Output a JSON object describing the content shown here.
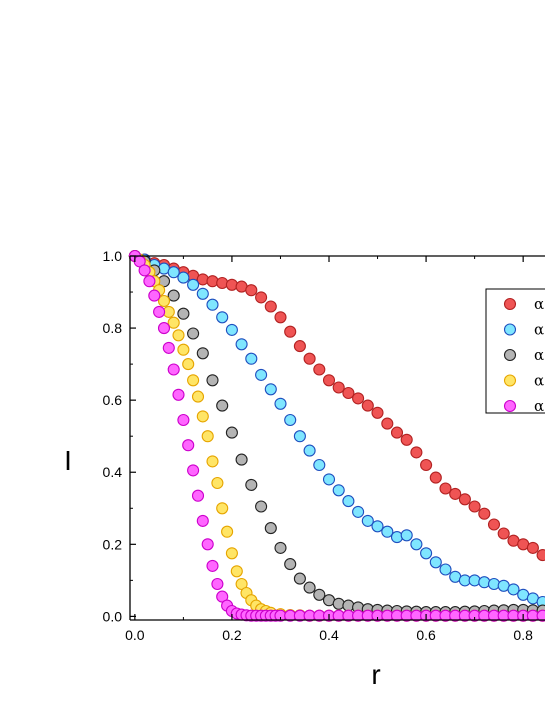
{
  "chart_data": {
    "type": "scatter",
    "xlabel": "r",
    "ylabel": "I",
    "xlim": [
      -0.01,
      0.845
    ],
    "ylim": [
      -0.01,
      1.0
    ],
    "x_ticks": [
      "0.0",
      "0.2",
      "0.4",
      "0.6",
      "0.8"
    ],
    "y_ticks": [
      "0.0",
      "0.2",
      "0.4",
      "0.6",
      "0.8",
      "1.0"
    ],
    "legend_position": "top-right",
    "grid": false,
    "series": [
      {
        "name": "α",
        "fill": "#ef5454",
        "stroke": "#b22222",
        "x": [
          0.0,
          0.02,
          0.04,
          0.06,
          0.08,
          0.1,
          0.12,
          0.14,
          0.16,
          0.18,
          0.2,
          0.22,
          0.24,
          0.26,
          0.28,
          0.3,
          0.32,
          0.34,
          0.36,
          0.38,
          0.4,
          0.42,
          0.44,
          0.46,
          0.48,
          0.5,
          0.52,
          0.54,
          0.56,
          0.58,
          0.6,
          0.62,
          0.64,
          0.66,
          0.68,
          0.7,
          0.72,
          0.74,
          0.76,
          0.78,
          0.8,
          0.82,
          0.84
        ],
        "y": [
          1.0,
          0.99,
          0.98,
          0.975,
          0.965,
          0.955,
          0.945,
          0.935,
          0.93,
          0.925,
          0.92,
          0.915,
          0.905,
          0.885,
          0.86,
          0.83,
          0.79,
          0.75,
          0.715,
          0.685,
          0.655,
          0.635,
          0.62,
          0.605,
          0.585,
          0.565,
          0.535,
          0.51,
          0.49,
          0.455,
          0.42,
          0.385,
          0.355,
          0.34,
          0.325,
          0.305,
          0.285,
          0.255,
          0.23,
          0.21,
          0.2,
          0.19,
          0.17
        ]
      },
      {
        "name": "α",
        "fill": "#7fe6ff",
        "stroke": "#1f4fbf",
        "x": [
          0.0,
          0.02,
          0.04,
          0.06,
          0.08,
          0.1,
          0.12,
          0.14,
          0.16,
          0.18,
          0.2,
          0.22,
          0.24,
          0.26,
          0.28,
          0.3,
          0.32,
          0.34,
          0.36,
          0.38,
          0.4,
          0.42,
          0.44,
          0.46,
          0.48,
          0.5,
          0.52,
          0.54,
          0.56,
          0.58,
          0.6,
          0.62,
          0.64,
          0.66,
          0.68,
          0.7,
          0.72,
          0.74,
          0.76,
          0.78,
          0.8,
          0.82,
          0.84
        ],
        "y": [
          1.0,
          0.99,
          0.975,
          0.965,
          0.955,
          0.94,
          0.92,
          0.895,
          0.865,
          0.83,
          0.795,
          0.755,
          0.715,
          0.67,
          0.63,
          0.59,
          0.545,
          0.5,
          0.46,
          0.42,
          0.38,
          0.35,
          0.32,
          0.29,
          0.265,
          0.25,
          0.235,
          0.22,
          0.225,
          0.2,
          0.175,
          0.15,
          0.13,
          0.11,
          0.1,
          0.1,
          0.095,
          0.09,
          0.085,
          0.075,
          0.06,
          0.05,
          0.04
        ]
      },
      {
        "name": "α",
        "fill": "#b4b4b4",
        "stroke": "#222222",
        "x": [
          0.0,
          0.02,
          0.04,
          0.06,
          0.08,
          0.1,
          0.12,
          0.14,
          0.16,
          0.18,
          0.2,
          0.22,
          0.24,
          0.26,
          0.28,
          0.3,
          0.32,
          0.34,
          0.36,
          0.38,
          0.4,
          0.42,
          0.44,
          0.46,
          0.48,
          0.5,
          0.52,
          0.54,
          0.56,
          0.58,
          0.6,
          0.62,
          0.64,
          0.66,
          0.68,
          0.7,
          0.72,
          0.74,
          0.76,
          0.78,
          0.8,
          0.82,
          0.84
        ],
        "y": [
          1.0,
          0.985,
          0.96,
          0.93,
          0.89,
          0.84,
          0.785,
          0.73,
          0.655,
          0.585,
          0.51,
          0.435,
          0.365,
          0.305,
          0.245,
          0.19,
          0.145,
          0.105,
          0.08,
          0.06,
          0.045,
          0.035,
          0.03,
          0.025,
          0.02,
          0.018,
          0.016,
          0.015,
          0.014,
          0.013,
          0.012,
          0.012,
          0.012,
          0.012,
          0.013,
          0.014,
          0.015,
          0.016,
          0.017,
          0.018,
          0.018,
          0.017,
          0.016
        ]
      },
      {
        "name": "α",
        "fill": "#ffe566",
        "stroke": "#e6a500",
        "x": [
          0.0,
          0.01,
          0.02,
          0.03,
          0.04,
          0.05,
          0.06,
          0.07,
          0.08,
          0.09,
          0.1,
          0.11,
          0.12,
          0.13,
          0.14,
          0.15,
          0.16,
          0.17,
          0.18,
          0.19,
          0.2,
          0.21,
          0.22,
          0.23,
          0.24,
          0.25,
          0.26,
          0.27,
          0.28,
          0.3,
          0.32,
          0.34,
          0.36,
          0.38,
          0.4,
          0.42,
          0.44,
          0.46,
          0.48,
          0.5,
          0.52,
          0.54,
          0.56,
          0.58,
          0.6,
          0.62,
          0.64,
          0.66,
          0.68,
          0.7,
          0.72,
          0.74,
          0.76,
          0.78,
          0.8,
          0.82,
          0.84
        ],
        "y": [
          1.0,
          0.99,
          0.975,
          0.955,
          0.93,
          0.905,
          0.875,
          0.845,
          0.815,
          0.78,
          0.74,
          0.7,
          0.655,
          0.61,
          0.555,
          0.5,
          0.43,
          0.37,
          0.3,
          0.235,
          0.175,
          0.125,
          0.09,
          0.065,
          0.045,
          0.03,
          0.02,
          0.015,
          0.01,
          0.006,
          0.004,
          0.003,
          0.002,
          0.002,
          0.002,
          0.002,
          0.002,
          0.002,
          0.002,
          0.002,
          0.002,
          0.002,
          0.002,
          0.002,
          0.002,
          0.002,
          0.002,
          0.002,
          0.002,
          0.002,
          0.002,
          0.002,
          0.002,
          0.002,
          0.002,
          0.002,
          0.002
        ]
      },
      {
        "name": "α",
        "fill": "#ff66ff",
        "stroke": "#cc00cc",
        "x": [
          0.0,
          0.01,
          0.02,
          0.03,
          0.04,
          0.05,
          0.06,
          0.07,
          0.08,
          0.09,
          0.1,
          0.11,
          0.12,
          0.13,
          0.14,
          0.15,
          0.16,
          0.17,
          0.18,
          0.19,
          0.2,
          0.21,
          0.22,
          0.23,
          0.24,
          0.25,
          0.26,
          0.27,
          0.28,
          0.29,
          0.3,
          0.32,
          0.34,
          0.36,
          0.38,
          0.4,
          0.42,
          0.44,
          0.46,
          0.48,
          0.5,
          0.52,
          0.54,
          0.56,
          0.58,
          0.6,
          0.62,
          0.64,
          0.66,
          0.68,
          0.7,
          0.72,
          0.74,
          0.76,
          0.78,
          0.8,
          0.82,
          0.84
        ],
        "y": [
          1.0,
          0.985,
          0.96,
          0.93,
          0.89,
          0.845,
          0.8,
          0.745,
          0.685,
          0.615,
          0.545,
          0.475,
          0.405,
          0.335,
          0.265,
          0.2,
          0.14,
          0.09,
          0.055,
          0.03,
          0.015,
          0.008,
          0.005,
          0.003,
          0.002,
          0.002,
          0.002,
          0.002,
          0.002,
          0.002,
          0.002,
          0.002,
          0.002,
          0.002,
          0.002,
          0.002,
          0.002,
          0.002,
          0.002,
          0.002,
          0.002,
          0.002,
          0.002,
          0.002,
          0.002,
          0.002,
          0.002,
          0.002,
          0.002,
          0.002,
          0.002,
          0.002,
          0.002,
          0.002,
          0.002,
          0.002,
          0.002,
          0.002
        ]
      }
    ]
  }
}
